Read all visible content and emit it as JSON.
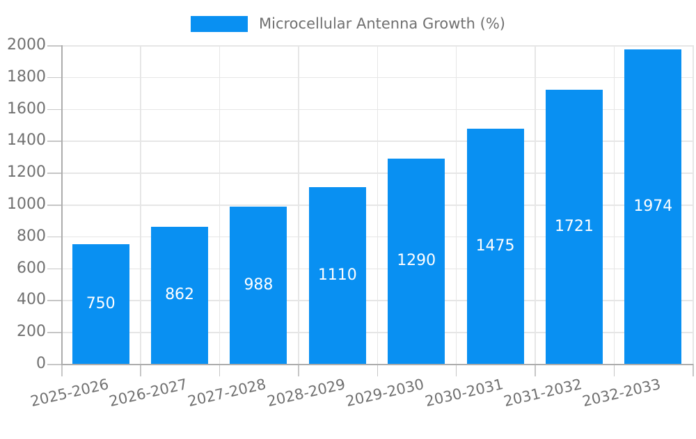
{
  "chart_data": {
    "type": "bar",
    "title": "Microcellular Antenna Growth (%)",
    "legend_entries": [
      "Microcellular Antenna Growth (%)"
    ],
    "legend_position": "top-center",
    "categories": [
      "2025-2026",
      "2026-2027",
      "2027-2028",
      "2028-2029",
      "2029-2030",
      "2030-2031",
      "2031-2032",
      "2032-2033"
    ],
    "values": [
      750,
      862,
      988,
      1110,
      1290,
      1475,
      1721,
      1974
    ],
    "value_labels": [
      "750",
      "862",
      "988",
      "1110",
      "1290",
      "1475",
      "1721",
      "1974"
    ],
    "xlabel": "",
    "ylabel": "",
    "ylim": [
      0,
      2000
    ],
    "ytick_step": 200,
    "yticks": [
      0,
      200,
      400,
      600,
      800,
      1000,
      1200,
      1400,
      1600,
      1800,
      2000
    ],
    "grid": true,
    "x_label_rotation_deg": -13,
    "colors": {
      "bar": "#0990F2",
      "value_label": "#FFFFFF",
      "axis_label": "#707070",
      "grid": "#E6E6E6",
      "axis_line": "#ACACAC",
      "tick": "#C6C6C6",
      "background": "#FFFFFF"
    }
  }
}
